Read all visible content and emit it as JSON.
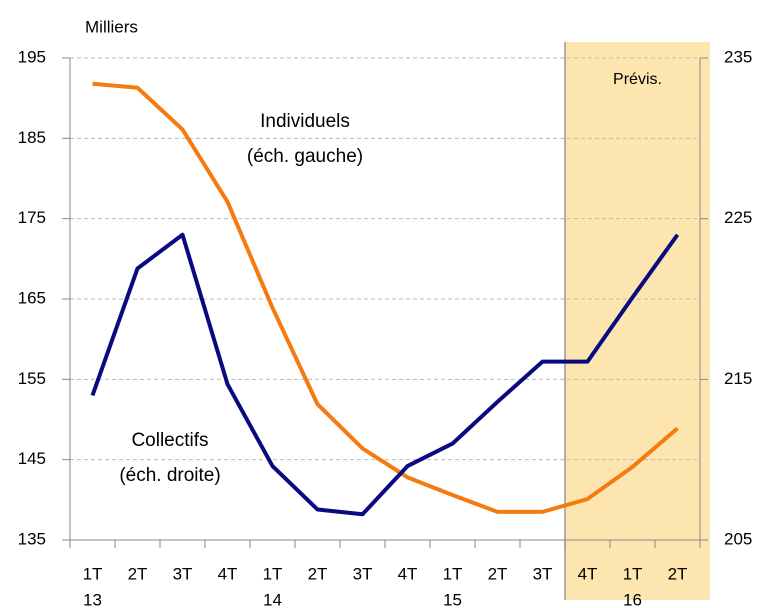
{
  "chart_data": {
    "type": "line",
    "y_label": "Milliers",
    "categories": [
      [
        "1T",
        "13"
      ],
      [
        "2T"
      ],
      [
        "3T"
      ],
      [
        "4T"
      ],
      [
        "1T",
        "14"
      ],
      [
        "2T"
      ],
      [
        "3T"
      ],
      [
        "4T"
      ],
      [
        "1T",
        "15"
      ],
      [
        "2T"
      ],
      [
        "3T"
      ],
      [
        "4T"
      ],
      [
        "1T",
        "16"
      ],
      [
        "2T"
      ]
    ],
    "series": [
      {
        "name": [
          "Individuels",
          "(éch. gauche)"
        ],
        "color": "#f57a10",
        "axis": "y",
        "values": [
          191.8,
          191.3,
          186.1,
          177.1,
          163.9,
          151.9,
          146.4,
          142.8,
          140.6,
          138.5,
          138.5,
          140.1,
          144.1,
          148.9
        ]
      },
      {
        "name": [
          "Collectifs",
          "(éch. droite)"
        ],
        "color": "#0a0a80",
        "axis": "y2",
        "values": [
          214.0,
          221.9,
          224.0,
          214.7,
          209.6,
          206.9,
          206.6,
          209.6,
          211.0,
          213.6,
          216.1,
          216.1,
          220.1,
          224.0
        ]
      }
    ],
    "forecast": {
      "label": "Prévis.",
      "start_index": 11,
      "color": "#fde5b0"
    },
    "ylim": [
      135,
      195
    ],
    "yticks": [
      135,
      145,
      155,
      165,
      175,
      185,
      195
    ],
    "y2lim": [
      205,
      235
    ],
    "y2ticks": [
      205,
      215,
      225,
      235
    ],
    "grid": true
  }
}
